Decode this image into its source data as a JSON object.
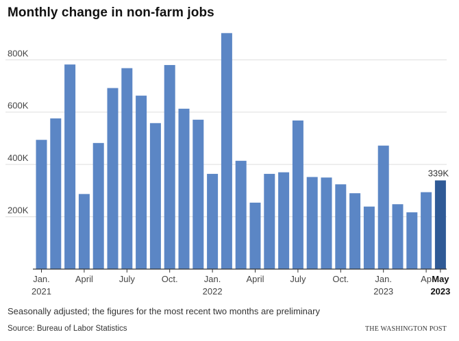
{
  "title": "Monthly change in non-farm jobs",
  "note": "Seasonally adjusted; the figures for the most recent two months are preliminary",
  "source": "Source: Bureau of Labor Statistics",
  "credit": "THE WASHINGTON POST",
  "colors": {
    "bar": "#5b86c5",
    "highlight": "#2f5a96",
    "grid": "#dddddd",
    "axis": "#333333"
  },
  "chart_data": {
    "type": "bar",
    "ylim": [
      0,
      950000
    ],
    "yticks": [
      200000,
      400000,
      600000,
      800000
    ],
    "ytick_labels": [
      "200K",
      "400K",
      "600K",
      "800K"
    ],
    "grid": true,
    "categories": [
      "Jan. 2021",
      "Feb. 2021",
      "Mar. 2021",
      "Apr. 2021",
      "May 2021",
      "Jun. 2021",
      "Jul. 2021",
      "Aug. 2021",
      "Sep. 2021",
      "Oct. 2021",
      "Nov. 2021",
      "Dec. 2021",
      "Jan. 2022",
      "Feb. 2022",
      "Mar. 2022",
      "Apr. 2022",
      "May 2022",
      "Jun. 2022",
      "Jul. 2022",
      "Aug. 2022",
      "Sep. 2022",
      "Oct. 2022",
      "Nov. 2022",
      "Dec. 2022",
      "Jan. 2023",
      "Feb. 2023",
      "Mar. 2023",
      "Apr. 2023",
      "May 2023"
    ],
    "values": [
      494000,
      576000,
      782000,
      287000,
      482000,
      692000,
      768000,
      663000,
      558000,
      780000,
      613000,
      571000,
      364000,
      902000,
      414000,
      254000,
      364000,
      370000,
      568000,
      352000,
      350000,
      324000,
      290000,
      239000,
      472000,
      248000,
      217000,
      294000,
      339000
    ],
    "highlight_index": 28,
    "highlight_label": "339K",
    "xtick_labels": [
      {
        "index": 0,
        "line1": "Jan.",
        "line2": "2021",
        "bold": false
      },
      {
        "index": 3,
        "line1": "April",
        "line2": "",
        "bold": false
      },
      {
        "index": 6,
        "line1": "July",
        "line2": "",
        "bold": false
      },
      {
        "index": 9,
        "line1": "Oct.",
        "line2": "",
        "bold": false
      },
      {
        "index": 12,
        "line1": "Jan.",
        "line2": "2022",
        "bold": false
      },
      {
        "index": 15,
        "line1": "April",
        "line2": "",
        "bold": false
      },
      {
        "index": 18,
        "line1": "July",
        "line2": "",
        "bold": false
      },
      {
        "index": 21,
        "line1": "Oct.",
        "line2": "",
        "bold": false
      },
      {
        "index": 24,
        "line1": "Jan.",
        "line2": "2023",
        "bold": false
      },
      {
        "index": 27,
        "line1": "Ap",
        "line2": "",
        "bold": false
      },
      {
        "index": 28,
        "line1": "May",
        "line2": "2023",
        "bold": true
      }
    ]
  }
}
